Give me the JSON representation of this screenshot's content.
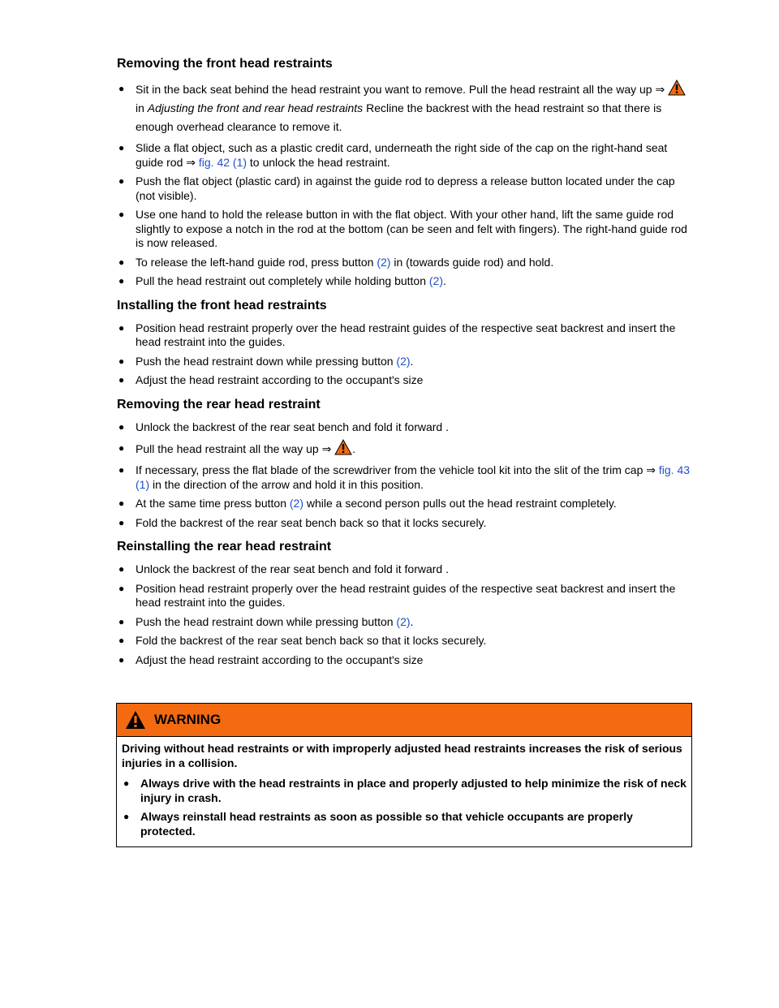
{
  "sections": [
    {
      "title": "Removing the front head restraints",
      "items": [
        {
          "parts": [
            {
              "t": "Sit in the back seat behind the head restraint you want to remove. Pull the head restraint all the way up ⇒ "
            },
            {
              "icon": "warning-triangle-icon"
            },
            {
              "t": " in "
            },
            {
              "t": "Adjusting the front and rear head restraints",
              "style": "italic"
            },
            {
              "t": "   Recline the backrest with the head restraint so that there is enough overhead clearance to remove it."
            }
          ]
        },
        {
          "parts": [
            {
              "t": "Slide a flat object, such as a plastic credit card, underneath the right side of the cap on the right-hand seat guide rod ⇒ "
            },
            {
              "t": "fig. 42 (1)",
              "style": "link"
            },
            {
              "t": " to unlock the head restraint."
            }
          ]
        },
        {
          "parts": [
            {
              "t": "Push the flat object (plastic card) in against the guide rod to depress a release button located under the cap (not visible)."
            }
          ]
        },
        {
          "parts": [
            {
              "t": "Use one hand to hold the release button in with the flat object. With your other hand, lift the same guide rod slightly to expose a notch in the rod at the bottom (can be seen and felt with fingers). The right-hand guide rod is now released."
            }
          ]
        },
        {
          "parts": [
            {
              "t": "To release the left-hand guide rod, press button "
            },
            {
              "t": "(2)",
              "style": "link"
            },
            {
              "t": " in (towards guide rod) and hold."
            }
          ]
        },
        {
          "parts": [
            {
              "t": "Pull the head restraint out completely while holding button "
            },
            {
              "t": "(2)",
              "style": "link"
            },
            {
              "t": "."
            }
          ]
        }
      ]
    },
    {
      "title": "Installing the front head restraints",
      "items": [
        {
          "parts": [
            {
              "t": "Position head restraint properly over the head restraint guides of the respective seat backrest and insert the head restraint into the guides."
            }
          ]
        },
        {
          "parts": [
            {
              "t": "Push the head restraint down while pressing button  "
            },
            {
              "t": "(2)",
              "style": "link"
            },
            {
              "t": "."
            }
          ]
        },
        {
          "parts": [
            {
              "t": "Adjust the head restraint according to the occupant's size"
            }
          ]
        }
      ]
    },
    {
      "title": "Removing the rear head restraint",
      "items": [
        {
          "parts": [
            {
              "t": "Unlock the backrest of the rear seat bench and fold it forward   ."
            }
          ]
        },
        {
          "parts": [
            {
              "t": "Pull the head restraint all the way up ⇒ "
            },
            {
              "icon": "warning-triangle-icon"
            },
            {
              "t": "."
            }
          ]
        },
        {
          "parts": [
            {
              "t": "If necessary, press the flat blade of the screwdriver from the vehicle tool kit into the slit of the trim cap ⇒ "
            },
            {
              "t": "fig. 43 (1)",
              "style": "link"
            },
            {
              "t": " in the direction of the arrow and hold it in this position."
            }
          ]
        },
        {
          "parts": [
            {
              "t": "At the same time press button "
            },
            {
              "t": "(2)",
              "style": "link"
            },
            {
              "t": " while a second person pulls out the head restraint completely."
            }
          ]
        },
        {
          "parts": [
            {
              "t": "Fold the backrest of the rear seat bench back so that it locks securely."
            }
          ]
        }
      ]
    },
    {
      "title": "Reinstalling the rear head restraint",
      "items": [
        {
          "parts": [
            {
              "t": "Unlock the backrest of the rear seat bench and fold it forward   ."
            }
          ]
        },
        {
          "parts": [
            {
              "t": "Position head restraint properly over the head restraint guides of the respective seat backrest and insert the head restraint into the guides."
            }
          ]
        },
        {
          "parts": [
            {
              "t": "Push the head restraint down while pressing button  "
            },
            {
              "t": "(2)",
              "style": "link"
            },
            {
              "t": "."
            }
          ]
        },
        {
          "parts": [
            {
              "t": "Fold the backrest of the rear seat bench back so that it locks securely."
            }
          ]
        },
        {
          "parts": [
            {
              "t": "Adjust the head restraint according to the occupant's size"
            }
          ]
        }
      ]
    }
  ],
  "warning": {
    "title": "WARNING",
    "intro": "Driving without head restraints or with improperly adjusted head restraints increases the risk of serious injuries in a collision.",
    "items": [
      "Always drive with the head restraints in place and properly adjusted to help minimize the risk of neck injury in crash.",
      "Always reinstall head restraints as soon as possible so that vehicle occupants are properly protected."
    ]
  },
  "colors": {
    "link": "#1f4ecc",
    "warning_header": "#f36a10",
    "warning_icon": "#f36a10"
  }
}
